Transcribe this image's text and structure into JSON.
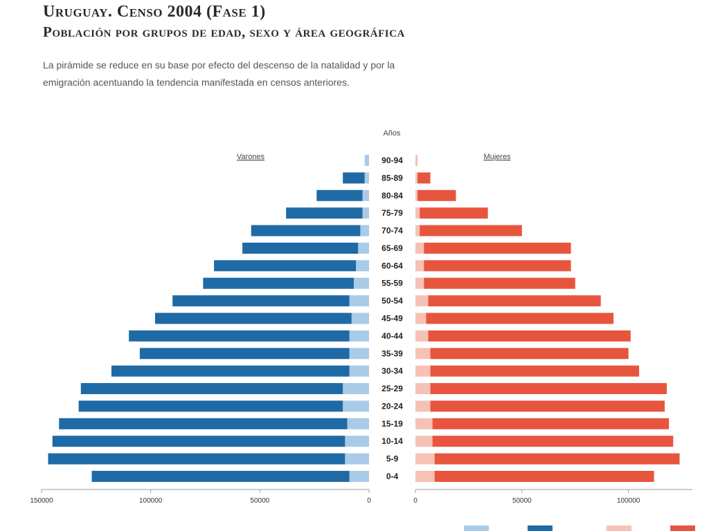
{
  "header": {
    "title": "Uruguay. Censo 2004 (Fase 1)",
    "subtitle": "Población por grupos de edad, sexo y área geográfica",
    "description": "La pirámide se reduce en su base por efecto del descenso de la natalidad y por la emigración acentuando la tendencia manifestada en censos anteriores."
  },
  "chart_data": {
    "type": "bar",
    "orientation": "horizontal-pyramid",
    "axis_title": "Años",
    "categories": [
      "0-4",
      "5-9",
      "10-14",
      "15-19",
      "20-24",
      "25-29",
      "30-34",
      "35-39",
      "40-44",
      "45-49",
      "50-54",
      "55-59",
      "60-64",
      "65-69",
      "70-74",
      "75-79",
      "80-84",
      "85-89",
      "90-94"
    ],
    "left_panel": {
      "label": "Varones",
      "xlim": [
        150000,
        0
      ],
      "ticks": [
        150000,
        100000,
        50000,
        0
      ],
      "colors": {
        "main": "#1f6aa5",
        "secondary": "#a9cbe8"
      },
      "series": [
        {
          "values": [
            118000,
            136000,
            134000,
            132000,
            121000,
            120000,
            109000,
            96000,
            101000,
            90000,
            81000,
            69000,
            65000,
            53000,
            50000,
            35000,
            21000,
            10000,
            0
          ]
        },
        {
          "values": [
            9000,
            11000,
            11000,
            10000,
            12000,
            12000,
            9000,
            9000,
            9000,
            8000,
            9000,
            7000,
            6000,
            5000,
            4000,
            3000,
            3000,
            2000,
            2000
          ]
        }
      ]
    },
    "right_panel": {
      "label": "Mujeres",
      "xlim": [
        0,
        130000
      ],
      "ticks": [
        0,
        50000,
        100000
      ],
      "colors": {
        "main": "#e8553f",
        "secondary": "#f6c2b6"
      },
      "series": [
        {
          "values": [
            103000,
            115000,
            113000,
            111000,
            110000,
            111000,
            98000,
            93000,
            95000,
            88000,
            81000,
            71000,
            69000,
            69000,
            48000,
            32000,
            18000,
            6000,
            0
          ]
        },
        {
          "values": [
            9000,
            9000,
            8000,
            8000,
            7000,
            7000,
            7000,
            7000,
            6000,
            5000,
            6000,
            4000,
            4000,
            4000,
            2000,
            2000,
            1000,
            1000,
            1000
          ]
        }
      ]
    }
  }
}
